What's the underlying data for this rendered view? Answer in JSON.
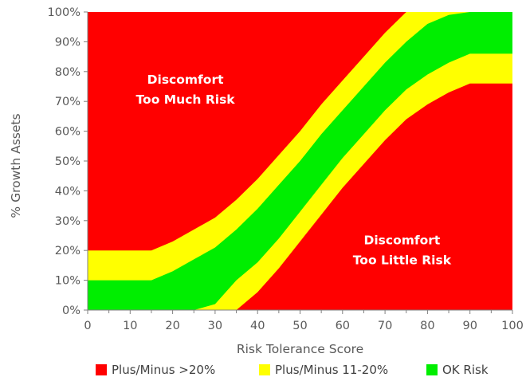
{
  "chart_data": {
    "type": "area",
    "xlabel": "Risk Tolerance Score",
    "ylabel": "% Growth Assets",
    "xlim": [
      0,
      100
    ],
    "ylim": [
      0,
      100
    ],
    "x_ticks": [
      0,
      10,
      20,
      30,
      40,
      50,
      60,
      70,
      80,
      90,
      100
    ],
    "y_ticks": [
      "0%",
      "10%",
      "20%",
      "30%",
      "40%",
      "50%",
      "60%",
      "70%",
      "80%",
      "90%",
      "100%"
    ],
    "x": [
      0,
      15,
      20,
      25,
      30,
      35,
      40,
      45,
      50,
      55,
      60,
      65,
      70,
      75,
      80,
      85,
      90,
      93,
      95,
      100
    ],
    "bands": [
      {
        "name": "Plus/Minus >20%",
        "color": "#ff0000",
        "lower": [
          null,
          null,
          null,
          null,
          null,
          null,
          null,
          null,
          null,
          null,
          null,
          null,
          null,
          null,
          null,
          null,
          null,
          null,
          null,
          null
        ],
        "upper": [
          null,
          null,
          null,
          null,
          null,
          null,
          null,
          null,
          null,
          null,
          null,
          null,
          null,
          null,
          null,
          null,
          null,
          null,
          null,
          null
        ]
      },
      {
        "name": "Plus/Minus 11-20%",
        "color": "#ffff00",
        "lower": [
          0,
          0,
          0,
          0,
          -8,
          0,
          6,
          14,
          23,
          32,
          41,
          49,
          57,
          64,
          69,
          73,
          76,
          76,
          76,
          76
        ],
        "upper": [
          20,
          20,
          23,
          27,
          31,
          37,
          44,
          52,
          60,
          69,
          77,
          85,
          93,
          100,
          100,
          100,
          100,
          100,
          100,
          100
        ]
      },
      {
        "name": "OK Risk",
        "color": "#00ee00",
        "lower": [
          0,
          0,
          0,
          0,
          2,
          10,
          16,
          24,
          33,
          42,
          51,
          59,
          67,
          74,
          79,
          83,
          86,
          86,
          86,
          86
        ],
        "upper": [
          10,
          10,
          13,
          17,
          21,
          27,
          34,
          42,
          50,
          59,
          67,
          75,
          83,
          90,
          96,
          99,
          100,
          100,
          100,
          100
        ]
      }
    ],
    "annotations": [
      {
        "id": "top",
        "lines": [
          "Discomfort",
          "Too Much Risk"
        ],
        "x": 23,
        "y": 76
      },
      {
        "id": "bottom",
        "lines": [
          "Discomfort",
          "Too Little Risk"
        ],
        "x": 74,
        "y": 22
      }
    ],
    "legend": {
      "position": "bottom",
      "items": [
        {
          "label": "Plus/Minus >20%",
          "color": "#ff0000"
        },
        {
          "label": "Plus/Minus 11-20%",
          "color": "#ffff00"
        },
        {
          "label": "OK Risk",
          "color": "#00ee00"
        }
      ]
    },
    "grid": false
  }
}
